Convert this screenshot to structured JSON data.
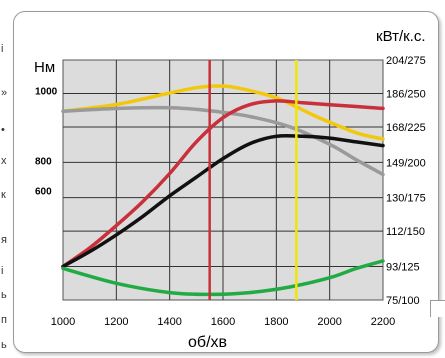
{
  "chart_data": {
    "type": "line",
    "xlabel": "об/хв",
    "ylabel_left": "Нм",
    "ylabel_right": "кВт/к.с.",
    "xlim": [
      1000,
      2200
    ],
    "x_ticks": [
      "1000",
      "1200",
      "1400",
      "1600",
      "1800",
      "2000",
      "2200"
    ],
    "y_left_ticks": [
      {
        "label": "1000",
        "value": 1000
      },
      {
        "label": "800",
        "value": 800
      },
      {
        "label": "600",
        "value": 600
      }
    ],
    "y_right_ticks": [
      "204/275",
      "186/250",
      "168/225",
      "149/200",
      "130/175",
      "112/150",
      "93/125",
      "75/100"
    ],
    "y_right_values": [
      204,
      186,
      168,
      149,
      130,
      112,
      93,
      75
    ],
    "grid": true,
    "series": [
      {
        "color": "#f2c80f",
        "axis": "left",
        "x": [
          1000,
          1200,
          1400,
          1500,
          1580,
          1650,
          1800,
          1950,
          2100,
          2200
        ],
        "y": [
          921,
          948,
          994,
          1015,
          1022,
          1015,
          975,
          900,
          835,
          810
        ]
      },
      {
        "color": "#9a9a9a",
        "axis": "left",
        "x": [
          1000,
          1200,
          1400,
          1550,
          1700,
          1850,
          2000,
          2100,
          2200
        ],
        "y": [
          921,
          932,
          935,
          923,
          900,
          859,
          789,
          727,
          668
        ]
      },
      {
        "color": "#c8303c",
        "axis": "right",
        "x": [
          1000,
          1100,
          1200,
          1300,
          1400,
          1500,
          1600,
          1700,
          1800,
          1900,
          2000,
          2100,
          2200
        ],
        "y": [
          93,
          103,
          115,
          128,
          143,
          160,
          173,
          180,
          182,
          181,
          180,
          179,
          178
        ]
      },
      {
        "color": "#111111",
        "axis": "right",
        "x": [
          1000,
          1100,
          1200,
          1300,
          1400,
          1500,
          1600,
          1700,
          1800,
          1900,
          2000,
          2100,
          2200
        ],
        "y": [
          93,
          101,
          110,
          120,
          131,
          141,
          151,
          159,
          163,
          163,
          162,
          160,
          158
        ]
      },
      {
        "color": "#22aa44",
        "axis": "right",
        "x": [
          1000,
          1200,
          1400,
          1550,
          1700,
          1850,
          2000,
          2100,
          2200
        ],
        "y": [
          92,
          84,
          79,
          78,
          79,
          82,
          87,
          92,
          96
        ]
      }
    ],
    "vertical_markers": [
      {
        "x": 1550,
        "color": "#c8303c"
      },
      {
        "x": 1875,
        "color": "#f2e600"
      }
    ]
  },
  "side_text": [
    "і",
    "»",
    "•",
    "х",
    "к",
    "я",
    "і",
    "ь",
    "п",
    "ь"
  ]
}
